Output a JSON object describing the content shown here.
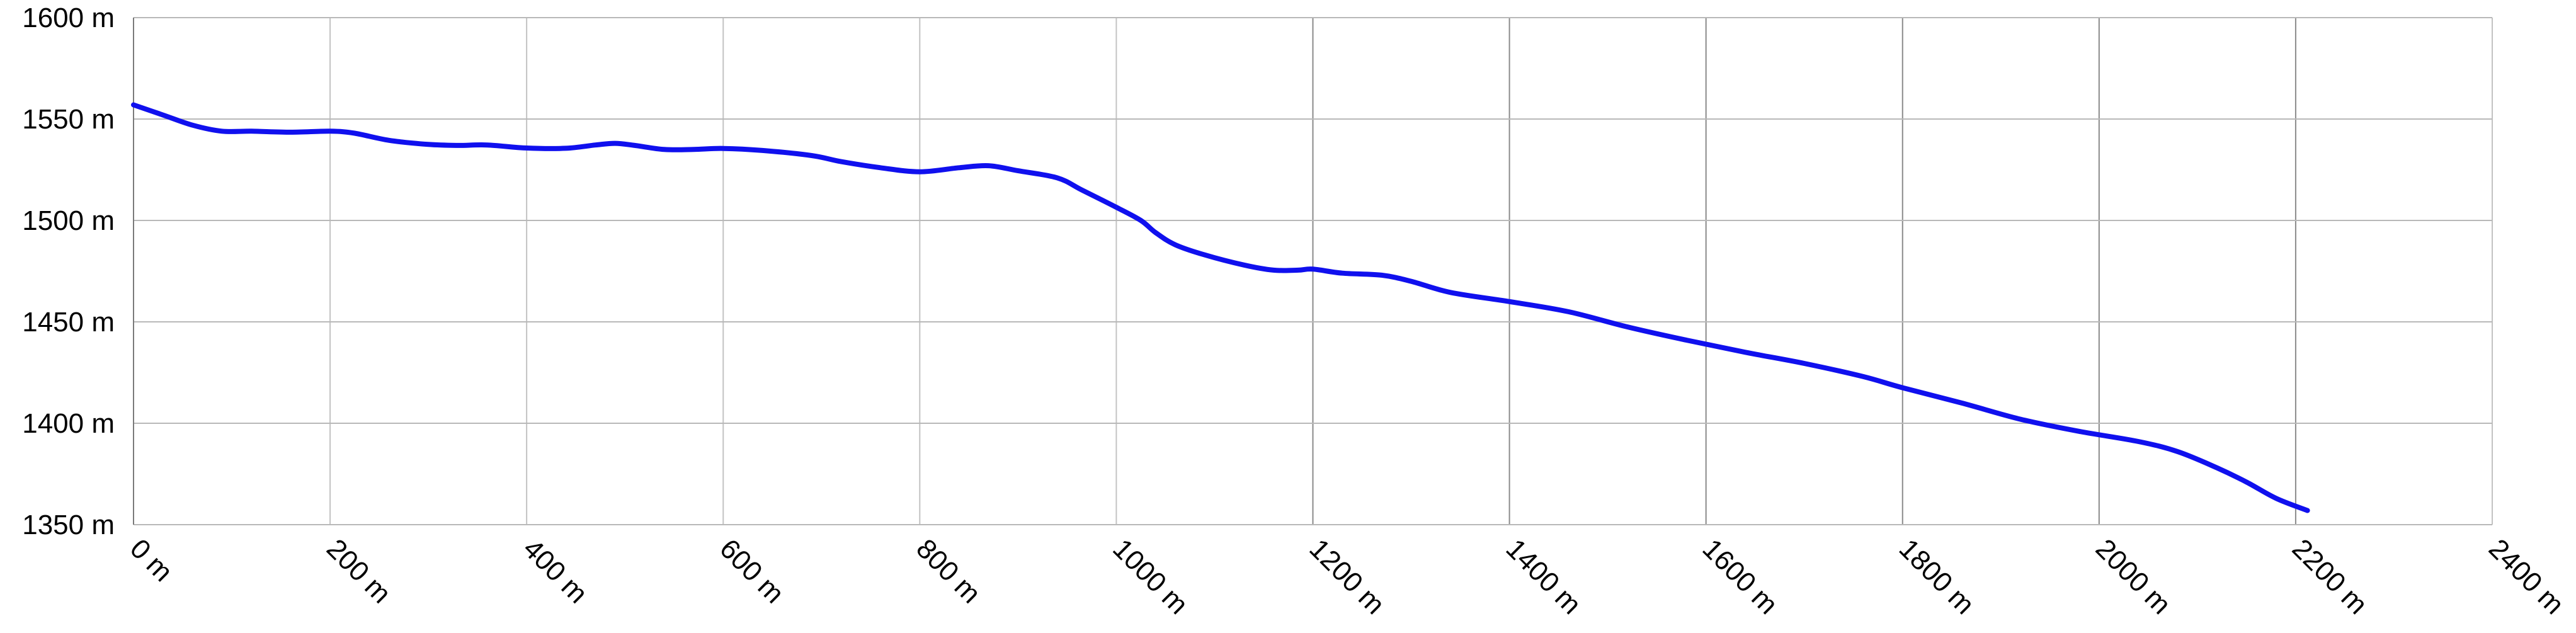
{
  "chart_data": {
    "type": "line",
    "xlim": [
      0,
      2400
    ],
    "ylim": [
      1350,
      1600
    ],
    "grid": true,
    "legend": "none",
    "x_ticks": [
      0,
      200,
      400,
      600,
      800,
      1000,
      1200,
      1400,
      1600,
      1800,
      2000,
      2200,
      2400
    ],
    "x_tick_labels": [
      "0 m",
      "200 m",
      "400 m",
      "600 m",
      "800 m",
      "1000 m",
      "1200 m",
      "1400 m",
      "1600 m",
      "1800 m",
      "2000 m",
      "2200 m",
      "2400 m"
    ],
    "y_ticks": [
      1350,
      1400,
      1450,
      1500,
      1550,
      1600
    ],
    "y_tick_labels": [
      "1350 m",
      "1400 m",
      "1450 m",
      "1500 m",
      "1550 m",
      "1600 m"
    ],
    "series": [
      {
        "color": "#1010ee",
        "x": [
          0,
          30,
          60,
          90,
          120,
          160,
          200,
          225,
          260,
          300,
          330,
          360,
          400,
          440,
          470,
          490,
          510,
          540,
          570,
          600,
          640,
          690,
          720,
          760,
          800,
          840,
          870,
          900,
          940,
          965,
          1000,
          1025,
          1040,
          1060,
          1090,
          1130,
          1160,
          1185,
          1200,
          1230,
          1270,
          1300,
          1340,
          1400,
          1460,
          1520,
          1580,
          1640,
          1700,
          1760,
          1800,
          1860,
          1920,
          1980,
          2040,
          2080,
          2120,
          2150,
          2180,
          2212
        ],
        "y": [
          1557,
          1552,
          1547,
          1544,
          1544,
          1543.5,
          1544,
          1543,
          1539.5,
          1537.5,
          1537,
          1537.2,
          1535.7,
          1535.6,
          1537.2,
          1538,
          1537,
          1535,
          1535,
          1535.5,
          1534.5,
          1532,
          1529,
          1526,
          1524,
          1526,
          1527,
          1524.5,
          1521,
          1515,
          1506.5,
          1500,
          1494,
          1488,
          1483,
          1478,
          1475.5,
          1475.5,
          1476,
          1474,
          1473,
          1470,
          1464.5,
          1460,
          1455,
          1447.5,
          1441,
          1435,
          1429.5,
          1423,
          1417.5,
          1410,
          1402,
          1396,
          1391,
          1386,
          1378,
          1371,
          1363,
          1357
        ]
      }
    ]
  }
}
